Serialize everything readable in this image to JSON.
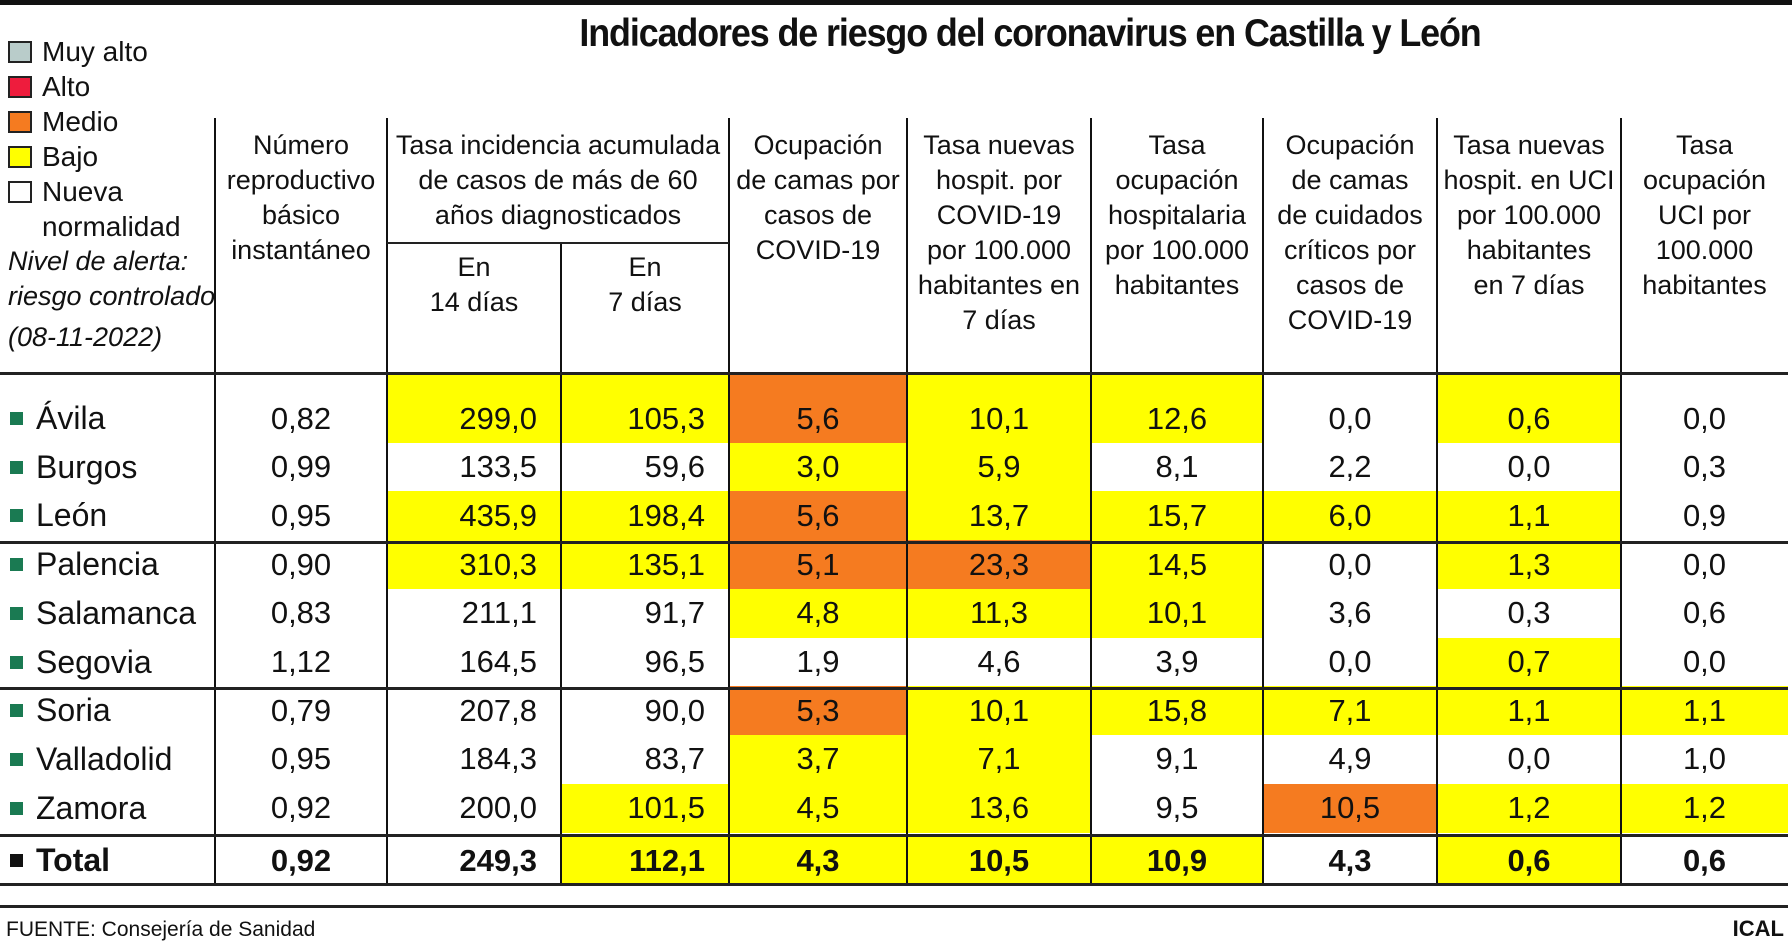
{
  "title": "Indicadores de riesgo del coronavirus en Castilla y León",
  "colors": {
    "muy_alto": "#b9ccca",
    "alto": "#ee1c3d",
    "medio": "#f57b20",
    "bajo": "#ffff00",
    "nueva_normalidad": "#ffffff",
    "province_bullet": "#1a7a52"
  },
  "legend": {
    "items": [
      {
        "label": "Muy alto",
        "level": "muy_alto"
      },
      {
        "label": "Alto",
        "level": "alto"
      },
      {
        "label": "Medio",
        "level": "medio"
      },
      {
        "label": "Bajo",
        "level": "bajo"
      },
      {
        "label": "Nueva",
        "level": "nueva_normalidad"
      }
    ],
    "continuation": "normalidad",
    "note_line1": "Nivel de alerta:",
    "note_line2": "riesgo controlado",
    "date": "(08-11-2022)"
  },
  "columns": [
    {
      "header": [
        "Número",
        "reproductivo",
        "básico",
        "instantáneo"
      ]
    },
    {
      "header": [
        "Tasa incidencia acumulada",
        "de casos de más de 60",
        "años diagnosticados"
      ],
      "subcolumns": [
        [
          "En",
          "14 días"
        ],
        [
          "En",
          "7 días"
        ]
      ]
    },
    {
      "header": [
        "Ocupación",
        "de camas por",
        "casos de",
        "COVID-19"
      ]
    },
    {
      "header": [
        "Tasa nuevas",
        "hospit. por",
        "COVID-19",
        "por 100.000",
        "habitantes en",
        "7 días"
      ]
    },
    {
      "header": [
        "Tasa",
        "ocupación",
        "hospitalaria",
        "por 100.000",
        "habitantes"
      ]
    },
    {
      "header": [
        "Ocupación",
        "de camas",
        "de cuidados",
        "críticos por",
        "casos de",
        "COVID-19"
      ]
    },
    {
      "header": [
        "Tasa nuevas",
        "hospit. en UCI",
        "por 100.000",
        "habitantes",
        "en 7 días"
      ]
    },
    {
      "header": [
        "Tasa",
        "ocupación",
        "UCI por",
        "100.000",
        "habitantes"
      ]
    }
  ],
  "rows": [
    {
      "name": "Ávila",
      "values": [
        "0,82",
        "299,0",
        "105,3",
        "5,6",
        "10,1",
        "12,6",
        "0,0",
        "0,6",
        "0,0"
      ],
      "levels": [
        "n",
        "bajo",
        "bajo",
        "medio",
        "bajo",
        "bajo",
        "n",
        "bajo",
        "n"
      ]
    },
    {
      "name": "Burgos",
      "values": [
        "0,99",
        "133,5",
        "59,6",
        "3,0",
        "5,9",
        "8,1",
        "2,2",
        "0,0",
        "0,3"
      ],
      "levels": [
        "n",
        "n",
        "n",
        "bajo",
        "bajo",
        "n",
        "n",
        "n",
        "n"
      ]
    },
    {
      "name": "León",
      "values": [
        "0,95",
        "435,9",
        "198,4",
        "5,6",
        "13,7",
        "15,7",
        "6,0",
        "1,1",
        "0,9"
      ],
      "levels": [
        "n",
        "bajo",
        "bajo",
        "medio",
        "bajo",
        "bajo",
        "bajo",
        "bajo",
        "n"
      ]
    },
    {
      "name": "Palencia",
      "values": [
        "0,90",
        "310,3",
        "135,1",
        "5,1",
        "23,3",
        "14,5",
        "0,0",
        "1,3",
        "0,0"
      ],
      "levels": [
        "n",
        "bajo",
        "bajo",
        "medio",
        "medio",
        "bajo",
        "n",
        "bajo",
        "n"
      ]
    },
    {
      "name": "Salamanca",
      "values": [
        "0,83",
        "211,1",
        "91,7",
        "4,8",
        "11,3",
        "10,1",
        "3,6",
        "0,3",
        "0,6"
      ],
      "levels": [
        "n",
        "n",
        "n",
        "bajo",
        "bajo",
        "bajo",
        "n",
        "n",
        "n"
      ]
    },
    {
      "name": "Segovia",
      "values": [
        "1,12",
        "164,5",
        "96,5",
        "1,9",
        "4,6",
        "3,9",
        "0,0",
        "0,7",
        "0,0"
      ],
      "levels": [
        "n",
        "n",
        "n",
        "n",
        "n",
        "n",
        "n",
        "bajo",
        "n"
      ]
    },
    {
      "name": "Soria",
      "values": [
        "0,79",
        "207,8",
        "90,0",
        "5,3",
        "10,1",
        "15,8",
        "7,1",
        "1,1",
        "1,1"
      ],
      "levels": [
        "n",
        "n",
        "n",
        "medio",
        "bajo",
        "bajo",
        "bajo",
        "bajo",
        "bajo"
      ]
    },
    {
      "name": "Valladolid",
      "values": [
        "0,95",
        "184,3",
        "83,7",
        "3,7",
        "7,1",
        "9,1",
        "4,9",
        "0,0",
        "1,0"
      ],
      "levels": [
        "n",
        "n",
        "n",
        "bajo",
        "bajo",
        "n",
        "n",
        "n",
        "n"
      ]
    },
    {
      "name": "Zamora",
      "values": [
        "0,92",
        "200,0",
        "101,5",
        "4,5",
        "13,6",
        "9,5",
        "10,5",
        "1,2",
        "1,2"
      ],
      "levels": [
        "n",
        "n",
        "bajo",
        "bajo",
        "bajo",
        "n",
        "medio",
        "bajo",
        "bajo"
      ]
    }
  ],
  "total": {
    "name": "Total",
    "values": [
      "0,92",
      "249,3",
      "112,1",
      "4,3",
      "10,5",
      "10,9",
      "4,3",
      "0,6",
      "0,6"
    ],
    "levels": [
      "n",
      "n",
      "bajo",
      "bajo",
      "bajo",
      "bajo",
      "n",
      "bajo",
      "n"
    ]
  },
  "footer": {
    "source": "FUENTE: Consejería de Sanidad",
    "brand": "ICAL"
  }
}
